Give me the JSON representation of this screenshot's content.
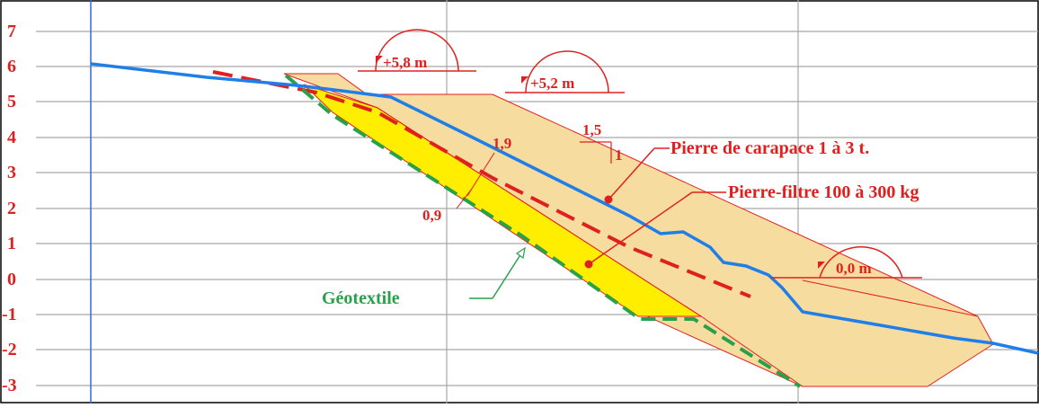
{
  "axis": {
    "y_ticks": [
      "7",
      "6",
      "5",
      "4",
      "3",
      "2",
      "1",
      "0",
      "-1",
      "-2",
      "-3"
    ]
  },
  "elevations": [
    {
      "label": "+5,8 m"
    },
    {
      "label": "+5,2 m"
    },
    {
      "label": "0,0 m"
    }
  ],
  "slope": {
    "horizontal": "1,5",
    "vertical": "1"
  },
  "thickness": {
    "armour": "1,9",
    "filter": "0,9"
  },
  "labels": {
    "armour": "Pierre de carapace 1 à 3 t.",
    "filter": "Pierre-filtre 100 à 300 kg",
    "geotextile": "Géotextile"
  },
  "colors": {
    "background": "#ffffff",
    "grid": "#a8a8a8",
    "axis_line": "#2b6fd6",
    "tick_text": "#e0201f",
    "armour_fill": "#f7dca0",
    "filter_fill": "#ffee00",
    "outline": "#e0201f",
    "profile_line": "#1f7ee8",
    "dashed_red": "#e0201f",
    "geotextile": "#2aa04a"
  }
}
